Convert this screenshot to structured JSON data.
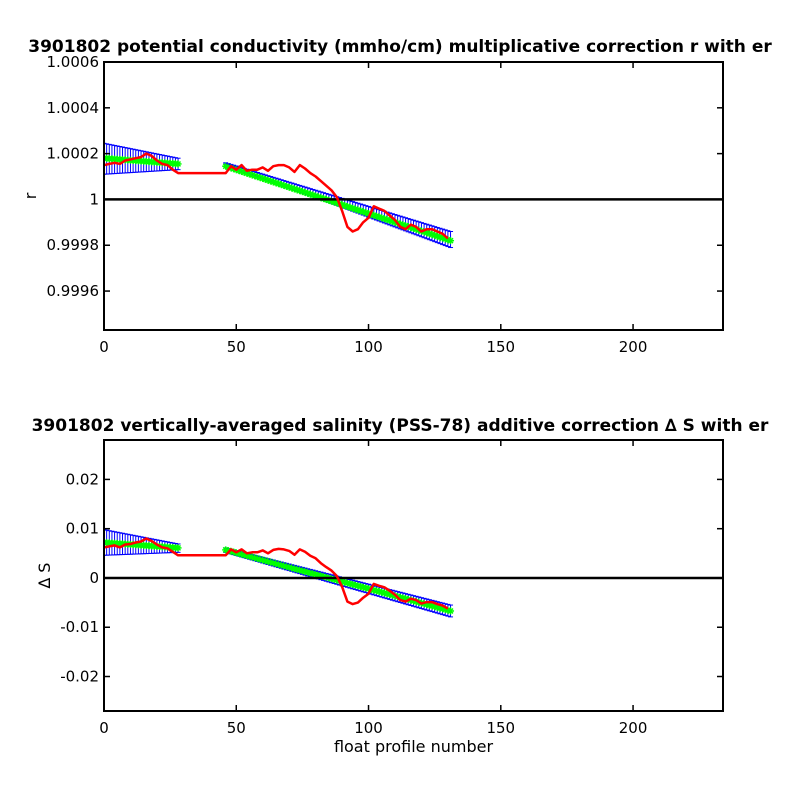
{
  "chart_data": [
    {
      "type": "line",
      "title": "3901802 potential conductivity (mmho/cm) multiplicative correction r with er",
      "xlabel": "",
      "ylabel": "r",
      "xlim": [
        0,
        234
      ],
      "ylim": [
        0.99943,
        1.0006
      ],
      "xticks": [
        0,
        50,
        100,
        150,
        200
      ],
      "xtick_labels": [
        "0",
        "50",
        "100",
        "150",
        "200"
      ],
      "yticks": [
        0.9996,
        0.9998,
        1.0,
        1.0002,
        1.0004,
        1.0006
      ],
      "ytick_labels": [
        "0.9996",
        "0.9998",
        "1",
        "1.0002",
        "1.0004",
        "1.0006"
      ],
      "reference_line": 1.0,
      "colors": {
        "errorbar": "#0000ff",
        "fit": "#00ff00",
        "profile": "#ff0000",
        "reference": "#000000"
      },
      "errorbar_segments": [
        {
          "x_start": 0,
          "x_end": 28,
          "lower_start": 1.00011,
          "lower_end": 1.00013,
          "mid_start": 1.00018,
          "mid_end": 1.000155,
          "upper_start": 1.000245,
          "upper_end": 1.00018
        },
        {
          "x_start": 46,
          "x_end": 131,
          "lower_start": 1.000155,
          "lower_end": 0.99979,
          "mid_start": 1.000145,
          "mid_end": 0.99982,
          "upper_start": 1.00016,
          "upper_end": 0.99986
        }
      ],
      "series": [
        {
          "x": [
            0,
            2,
            4,
            6,
            8,
            10,
            12,
            14,
            16,
            18,
            20,
            22,
            24,
            26,
            28,
            46,
            48,
            50,
            52,
            54,
            56,
            58,
            60,
            62,
            64,
            66,
            68,
            70,
            72,
            74,
            76,
            78,
            80,
            82,
            84,
            86,
            88,
            90,
            92,
            94,
            96,
            98,
            100,
            102,
            104,
            106,
            108,
            110,
            112,
            114,
            116,
            118,
            120,
            122,
            124,
            126,
            128,
            130
          ],
          "values": [
            1.00015,
            1.000155,
            1.00016,
            1.000155,
            1.00017,
            1.000175,
            1.00018,
            1.000185,
            1.0002,
            1.00019,
            1.00017,
            1.000155,
            1.00015,
            1.00013,
            1.000115,
            1.000115,
            1.000145,
            1.00013,
            1.00015,
            1.000125,
            1.00013,
            1.00013,
            1.00014,
            1.000125,
            1.000145,
            1.00015,
            1.00015,
            1.00014,
            1.00012,
            1.00015,
            1.000135,
            1.000115,
            1.0001,
            1.00008,
            1.00006,
            1.00004,
            1.00001,
            0.99995,
            0.99988,
            0.99986,
            0.99987,
            0.9999,
            0.99992,
            0.99997,
            0.99996,
            0.99995,
            0.99993,
            0.99991,
            0.99988,
            0.99987,
            0.99989,
            0.99988,
            0.99986,
            0.99987,
            0.99987,
            0.99986,
            0.99985,
            0.99983
          ]
        }
      ],
      "grid": false
    },
    {
      "type": "line",
      "title": "3901802 vertically-averaged salinity (PSS-78) additive correction ∆ S with er",
      "xlabel": "float profile number",
      "ylabel": "∆ S",
      "xlim": [
        0,
        234
      ],
      "ylim": [
        -0.027,
        0.028
      ],
      "xticks": [
        0,
        50,
        100,
        150,
        200
      ],
      "xtick_labels": [
        "0",
        "50",
        "100",
        "150",
        "200"
      ],
      "yticks": [
        -0.02,
        -0.01,
        0,
        0.01,
        0.02
      ],
      "ytick_labels": [
        "-0.02",
        "-0.01",
        "0",
        "0.01",
        "0.02"
      ],
      "reference_line": 0,
      "colors": {
        "errorbar": "#0000ff",
        "fit": "#00ff00",
        "profile": "#ff0000",
        "reference": "#000000"
      },
      "errorbar_segments": [
        {
          "x_start": 0,
          "x_end": 28,
          "lower_start": 0.0046,
          "lower_end": 0.0052,
          "mid_start": 0.0072,
          "mid_end": 0.0061,
          "upper_start": 0.0098,
          "upper_end": 0.0069
        },
        {
          "x_start": 46,
          "x_end": 131,
          "lower_start": 0.0052,
          "lower_end": -0.0079,
          "mid_start": 0.0057,
          "mid_end": -0.0067,
          "upper_start": 0.0061,
          "upper_end": -0.0055
        }
      ],
      "series": [
        {
          "x": [
            0,
            2,
            4,
            6,
            8,
            10,
            12,
            14,
            16,
            18,
            20,
            22,
            24,
            26,
            28,
            46,
            48,
            50,
            52,
            54,
            56,
            58,
            60,
            62,
            64,
            66,
            68,
            70,
            72,
            74,
            76,
            78,
            80,
            82,
            84,
            86,
            88,
            90,
            92,
            94,
            96,
            98,
            100,
            102,
            104,
            106,
            108,
            110,
            112,
            114,
            116,
            118,
            120,
            122,
            124,
            126,
            128,
            130
          ],
          "values": [
            0.0062,
            0.0064,
            0.0066,
            0.0062,
            0.0068,
            0.0069,
            0.0072,
            0.0074,
            0.008,
            0.0075,
            0.0068,
            0.0062,
            0.006,
            0.0053,
            0.0046,
            0.0046,
            0.0058,
            0.0052,
            0.0058,
            0.005,
            0.0052,
            0.0052,
            0.0056,
            0.005,
            0.0057,
            0.0059,
            0.0058,
            0.0055,
            0.0047,
            0.0058,
            0.0053,
            0.0045,
            0.004,
            0.003,
            0.0022,
            0.0015,
            0.0004,
            -0.0018,
            -0.0048,
            -0.0053,
            -0.005,
            -0.004,
            -0.0032,
            -0.0012,
            -0.0016,
            -0.0019,
            -0.0026,
            -0.0034,
            -0.0045,
            -0.0048,
            -0.0042,
            -0.0045,
            -0.0052,
            -0.0049,
            -0.0049,
            -0.0053,
            -0.0056,
            -0.0062
          ]
        }
      ],
      "grid": false
    }
  ]
}
